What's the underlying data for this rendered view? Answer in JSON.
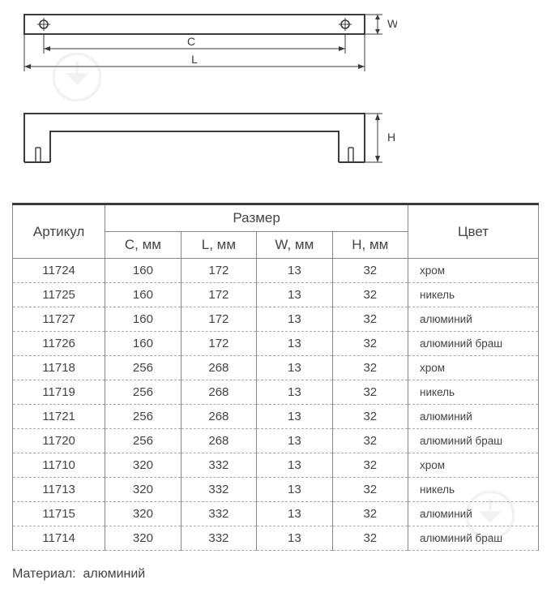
{
  "diagram": {
    "labels": {
      "W": "W",
      "C": "C",
      "L": "L",
      "H": "H"
    },
    "stroke": "#3a3a3a",
    "bg": "#ffffff"
  },
  "watermark": {
    "color": "#9e9e9e"
  },
  "table": {
    "headers": {
      "article": "Артикул",
      "size": "Размер",
      "color": "Цвет",
      "c": "C, мм",
      "l": "L, мм",
      "w": "W, мм",
      "h": "H, мм"
    },
    "rows": [
      {
        "art": "11724",
        "c": "160",
        "l": "172",
        "w": "13",
        "h": "32",
        "color": "хром"
      },
      {
        "art": "11725",
        "c": "160",
        "l": "172",
        "w": "13",
        "h": "32",
        "color": "никель"
      },
      {
        "art": "11727",
        "c": "160",
        "l": "172",
        "w": "13",
        "h": "32",
        "color": "алюминий"
      },
      {
        "art": "11726",
        "c": "160",
        "l": "172",
        "w": "13",
        "h": "32",
        "color": "алюминий браш"
      },
      {
        "art": "11718",
        "c": "256",
        "l": "268",
        "w": "13",
        "h": "32",
        "color": "хром"
      },
      {
        "art": "11719",
        "c": "256",
        "l": "268",
        "w": "13",
        "h": "32",
        "color": "никель"
      },
      {
        "art": "11721",
        "c": "256",
        "l": "268",
        "w": "13",
        "h": "32",
        "color": "алюминий"
      },
      {
        "art": "11720",
        "c": "256",
        "l": "268",
        "w": "13",
        "h": "32",
        "color": "алюминий браш"
      },
      {
        "art": "11710",
        "c": "320",
        "l": "332",
        "w": "13",
        "h": "32",
        "color": "хром"
      },
      {
        "art": "11713",
        "c": "320",
        "l": "332",
        "w": "13",
        "h": "32",
        "color": "никель"
      },
      {
        "art": "11715",
        "c": "320",
        "l": "332",
        "w": "13",
        "h": "32",
        "color": "алюминий"
      },
      {
        "art": "11714",
        "c": "320",
        "l": "332",
        "w": "13",
        "h": "32",
        "color": "алюминий браш"
      }
    ]
  },
  "material": {
    "label": "Материал:",
    "value": "алюминий"
  }
}
